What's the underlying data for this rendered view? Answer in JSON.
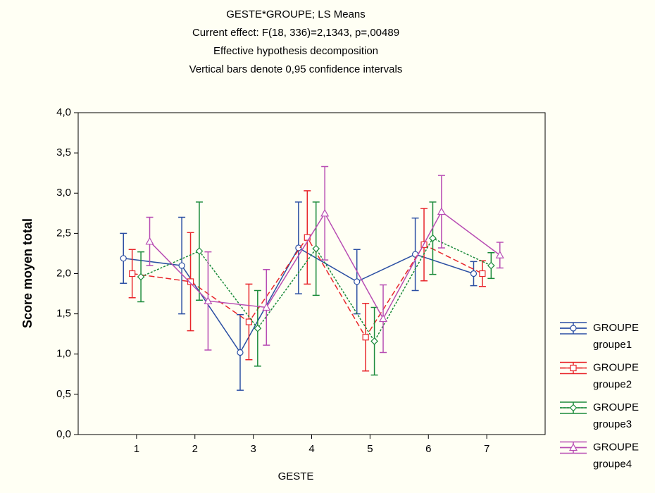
{
  "chart_data": {
    "type": "line",
    "title": "GESTE*GROUPE; LS Means",
    "subtitles": [
      "Current effect: F(18, 336)=2,1343, p=,00489",
      "Effective hypothesis decomposition",
      "Vertical bars denote 0,95 confidence intervals"
    ],
    "x_label": "GESTE",
    "y_label": "Score moyen total",
    "legend_title": "GROUPE",
    "legend_position": "right",
    "x": [
      1,
      2,
      3,
      4,
      5,
      6,
      7
    ],
    "xlim": [
      0,
      8
    ],
    "xticks": [
      1,
      2,
      3,
      4,
      5,
      6,
      7
    ],
    "ylim": [
      0,
      4
    ],
    "yticks": [
      {
        "value": 0,
        "label": "0,0"
      },
      {
        "value": 0.5,
        "label": "0,5"
      },
      {
        "value": 1,
        "label": "1,0"
      },
      {
        "value": 1.5,
        "label": "1,5"
      },
      {
        "value": 2,
        "label": "2,0"
      },
      {
        "value": 2.5,
        "label": "2,5"
      },
      {
        "value": 3,
        "label": "3,0"
      },
      {
        "value": 3.5,
        "label": "3,5"
      },
      {
        "value": 4,
        "label": "4,0"
      }
    ],
    "series": [
      {
        "name": "groupe1",
        "color": "#2b4fa3",
        "marker": "circle",
        "line_style": "solid",
        "values": [
          2.19,
          2.1,
          1.02,
          2.32,
          1.9,
          2.24,
          2.0
        ],
        "errors": [
          0.31,
          0.6,
          0.47,
          0.57,
          0.4,
          0.45,
          0.15
        ]
      },
      {
        "name": "groupe2",
        "color": "#e8262b",
        "marker": "square",
        "line_style": "dashed",
        "values": [
          2.0,
          1.9,
          1.4,
          2.45,
          1.21,
          2.36,
          2.0
        ],
        "errors": [
          0.3,
          0.61,
          0.47,
          0.58,
          0.42,
          0.45,
          0.16
        ]
      },
      {
        "name": "groupe3",
        "color": "#1a8a3a",
        "marker": "diamond",
        "line_style": "dotted",
        "values": [
          1.96,
          2.28,
          1.32,
          2.31,
          1.16,
          2.44,
          2.1
        ],
        "errors": [
          0.31,
          0.61,
          0.47,
          0.58,
          0.42,
          0.45,
          0.16
        ]
      },
      {
        "name": "groupe4",
        "color": "#b84db3",
        "marker": "triangle",
        "line_style": "solid",
        "values": [
          2.4,
          1.66,
          1.58,
          2.75,
          1.44,
          2.77,
          2.23
        ],
        "errors": [
          0.3,
          0.61,
          0.47,
          0.58,
          0.42,
          0.45,
          0.16
        ]
      }
    ]
  }
}
